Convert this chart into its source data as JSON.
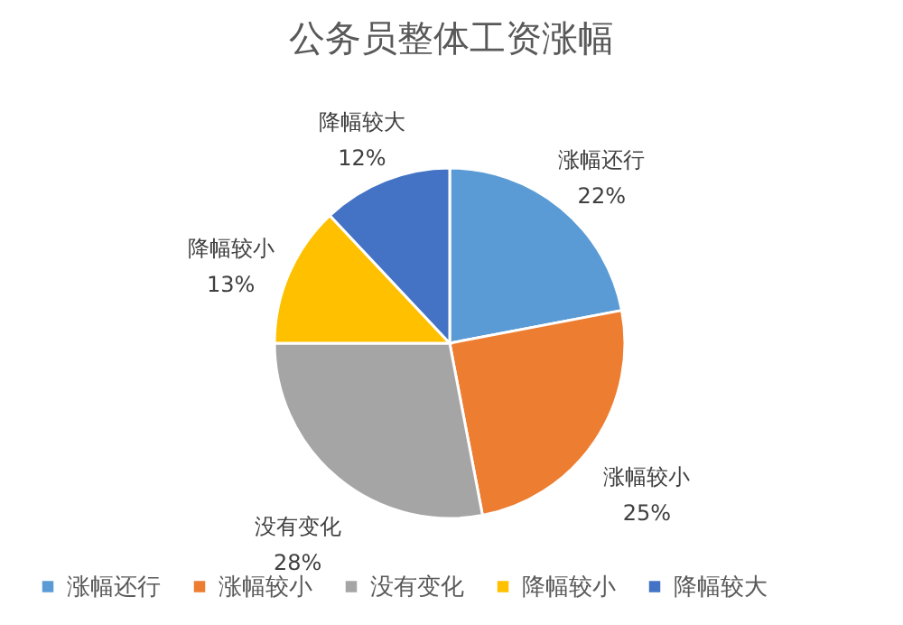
{
  "chart_data": {
    "type": "pie",
    "title": "公务员整体工资涨幅",
    "categories": [
      "涨幅还行",
      "涨幅较小",
      "没有变化",
      "降幅较小",
      "降幅较大"
    ],
    "values": [
      22,
      25,
      28,
      13,
      12
    ],
    "colors": [
      "#5b9bd5",
      "#ed7d31",
      "#a5a5a5",
      "#ffc000",
      "#4472c4"
    ],
    "value_labels": [
      "22%",
      "25%",
      "28%",
      "13%",
      "12%"
    ],
    "legend": "bottom"
  }
}
